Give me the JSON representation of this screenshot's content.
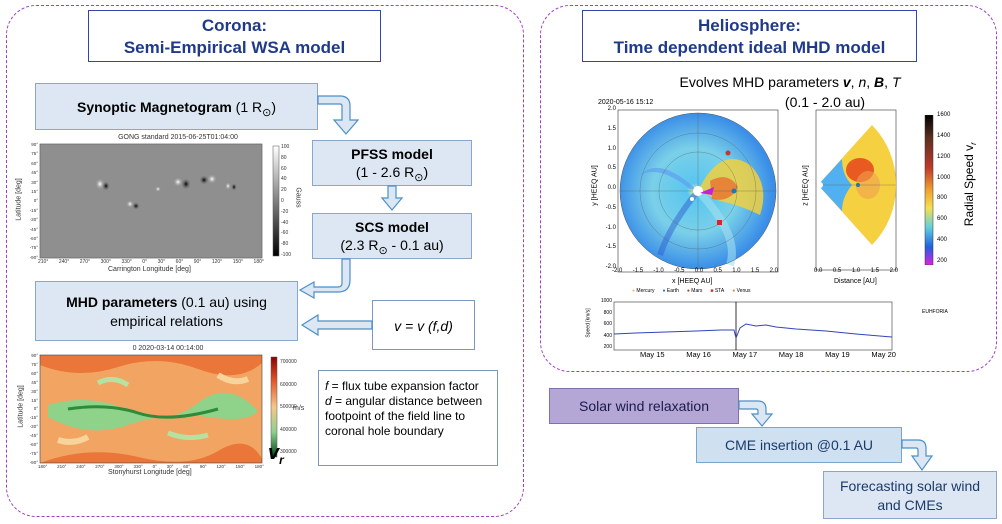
{
  "corona": {
    "title_line1": "Corona:",
    "title_line2": "Semi-Empirical WSA model",
    "synoptic": {
      "bold": "Synoptic Magnetogram",
      "rest": " (1 R",
      "end": ")"
    },
    "pfss": {
      "bold": "PFSS model",
      "line2": "(1 - 2.6 R",
      "end": ")"
    },
    "scs": {
      "bold": "SCS model",
      "line2a": "(2.3 R",
      "line2b": " - 0.1 au)"
    },
    "mhd": {
      "bold": "MHD parameters",
      "rest": " (0.1 au) using",
      "line2": "empirical relations"
    },
    "equation": "v = v (f,d)",
    "magnetogram_title": "GONG standard 2015-06-25T01:04:00",
    "magnetogram_xlabel": "Carrington Longitude [deg]",
    "magnetogram_ylabel": "Latitude [deg]",
    "magnetogram_colorbar_label": "Gauss",
    "magnetogram_colorbar_ticks": [
      "100",
      "80",
      "60",
      "40",
      "20",
      "0",
      "-20",
      "-40",
      "-60",
      "-80",
      "-100"
    ],
    "magnetogram_xticks": [
      "210°",
      "240°",
      "270°",
      "300°",
      "330°",
      "0°",
      "30°",
      "60°",
      "90°",
      "120°",
      "150°",
      "180°"
    ],
    "magnetogram_yticks": [
      "90°",
      "75°",
      "60°",
      "45°",
      "30°",
      "15°",
      "0°",
      "-15°",
      "-30°",
      "-45°",
      "-60°",
      "-75°",
      "-90°"
    ],
    "vr_map_title": "0  2020-03-14 00:14:00",
    "vr_map_xlabel": "Stonyhurst Longitude [deg]",
    "vr_map_ylabel": "Latitude [deg]",
    "vr_colorbar_label": "m/s",
    "vr_colorbar_ticks": [
      "700000",
      "600000",
      "500000",
      "400000",
      "300000"
    ],
    "vr_xticks": [
      "180°",
      "210°",
      "240°",
      "270°",
      "300°",
      "330°",
      "0°",
      "30°",
      "60°",
      "90°",
      "120°",
      "150°",
      "180°"
    ],
    "vr_yticks": [
      "90°",
      "75°",
      "60°",
      "45°",
      "30°",
      "15°",
      "0°",
      "-15°",
      "-30°",
      "-45°",
      "-60°",
      "-75°",
      "-90°"
    ],
    "vr_symbol": "v",
    "vr_sub": "r",
    "definition_f_sym": "f",
    "definition_f_text": " = flux tube expansion factor",
    "definition_d_sym": "d",
    "definition_d_text": " = angular distance between footpoint of the field line to coronal hole boundary"
  },
  "helio": {
    "title_line1": "Heliosphere:",
    "title_line2": "Time dependent ideal MHD model",
    "evolves_prefix": "Evolves MHD parameters ",
    "evolves_v": "v",
    "evolves_n": "n",
    "evolves_B": "B",
    "evolves_T": "T",
    "range": "(0.1 - 2.0 au)",
    "timestamp": "2020-05-16 15:12",
    "polar_xlabel": "x [HEEQ AU]",
    "polar_ylabel": "y [HEEQ AU]",
    "polar_ticks": [
      "-2.0",
      "-1.5",
      "-1.0",
      "-0.5",
      "0.0",
      "0.5",
      "1.0",
      "1.5",
      "2.0"
    ],
    "meridional_xlabel": "Distance [AU]",
    "meridional_ylabel": "z [HEEQ AU]",
    "meridional_xticks": [
      "0.0",
      "0.5",
      "1.0",
      "1.5",
      "2.0"
    ],
    "legend": [
      "Mercury",
      "Earth",
      "Mars",
      "STA",
      "Venus"
    ],
    "colorbar_label": "Radial Speed v",
    "colorbar_sub": "r",
    "colorbar_ticks": [
      "1600",
      "1400",
      "1200",
      "1000",
      "800",
      "600",
      "400",
      "200"
    ],
    "speed_ylabel": "Speed [km/s]",
    "speed_yticks": [
      "1000",
      "800",
      "600",
      "400",
      "200"
    ],
    "speed_dates": [
      "May 15",
      "May 16",
      "May 17",
      "May 18",
      "May 19",
      "May 20"
    ],
    "speed_legend": "EUHFORIA"
  },
  "workflow": {
    "step1": "Solar wind relaxation",
    "step2": "CME insertion @0.1 AU",
    "step3_line1": "Forecasting solar wind",
    "step3_line2": "and CMEs"
  },
  "colors": {
    "panel_border": "#a040c0",
    "title_text": "#1f3a8a",
    "box_fill": "#dde7f3",
    "arrow_fill": "#dde7f3",
    "arrow_stroke": "#4a90c8",
    "step1_fill": "#b4a7d6"
  }
}
